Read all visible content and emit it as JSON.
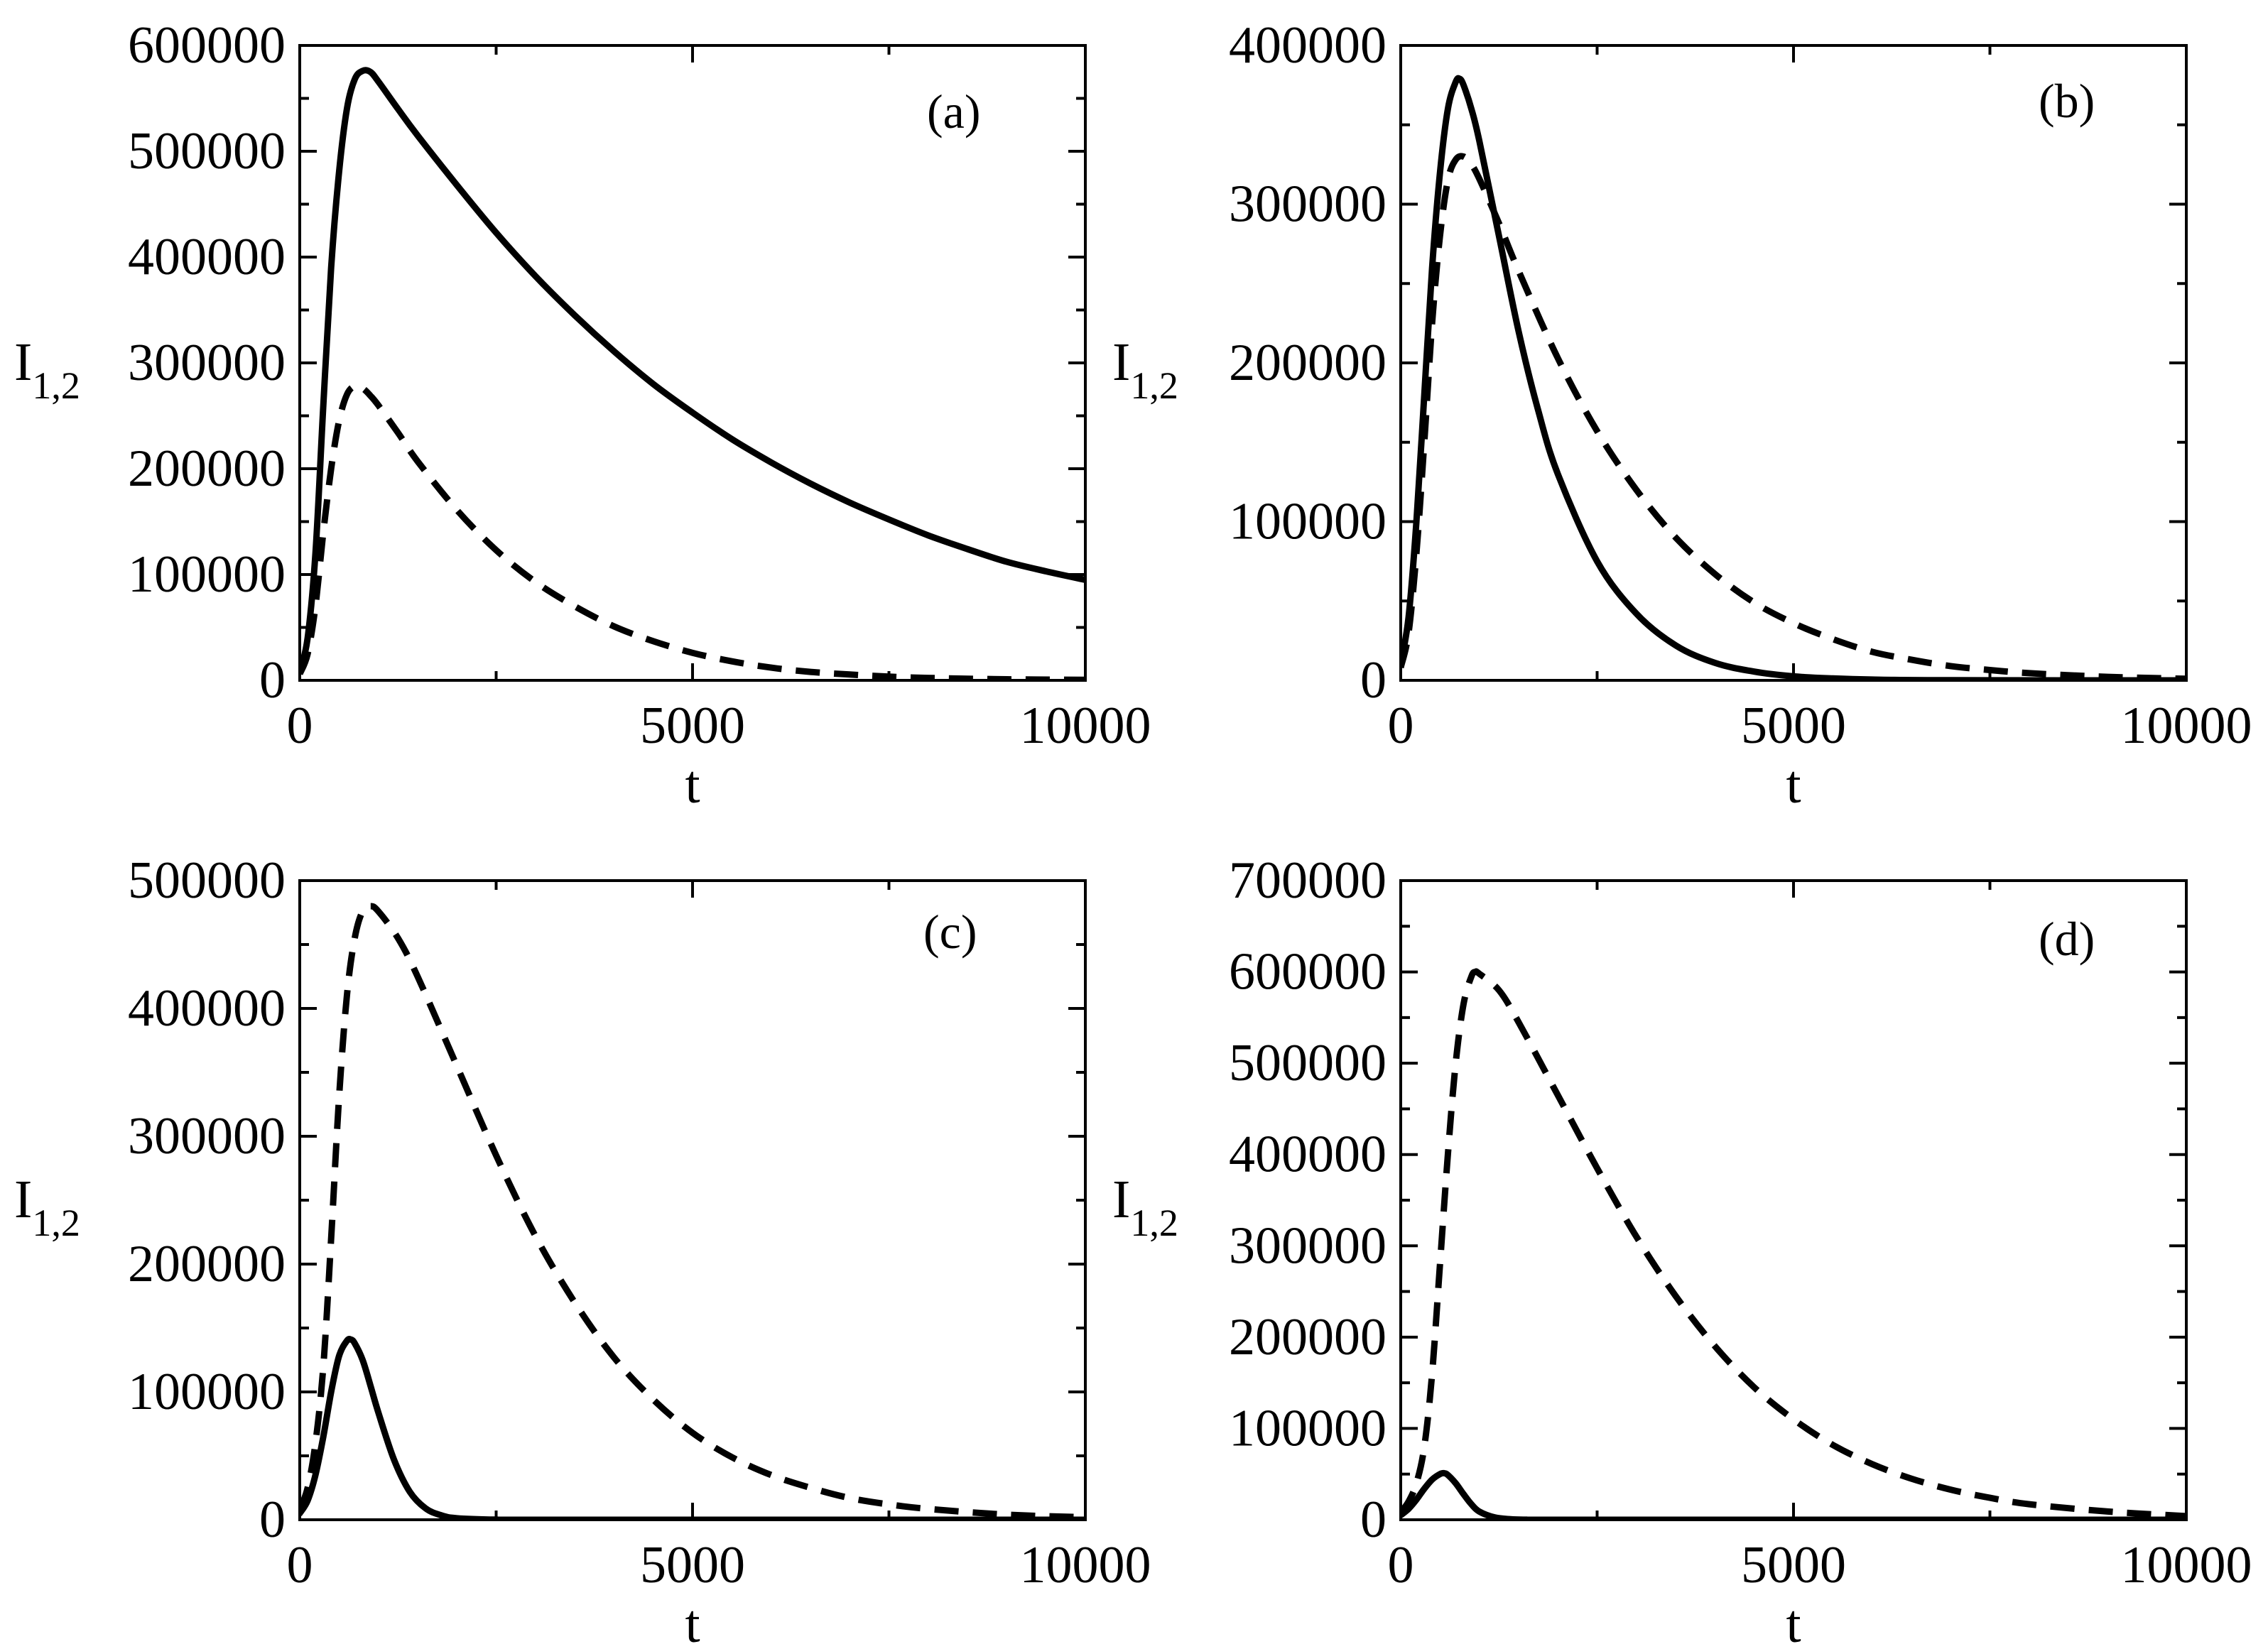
{
  "chart_data": [
    {
      "type": "line",
      "panel_label": "(a)",
      "xlabel": "t",
      "ylabel": "I",
      "ylabel_sub": "1,2",
      "xlim": [
        0,
        10000
      ],
      "ylim": [
        0,
        600000
      ],
      "xticks": [
        0,
        5000,
        10000
      ],
      "xtick_labels": [
        "0",
        "5000",
        "10000"
      ],
      "yticks": [
        0,
        100000,
        200000,
        300000,
        400000,
        500000,
        600000
      ],
      "ytick_labels": [
        "0",
        "100000",
        "200000",
        "300000",
        "400000",
        "500000",
        "600000"
      ],
      "series": [
        {
          "name": "I1",
          "style": "solid",
          "points": [
            [
              0,
              8000
            ],
            [
              100,
              40000
            ],
            [
              200,
              120000
            ],
            [
              300,
              260000
            ],
            [
              400,
              390000
            ],
            [
              500,
              480000
            ],
            [
              600,
              540000
            ],
            [
              700,
              568000
            ],
            [
              800,
              576000
            ],
            [
              900,
              575000
            ],
            [
              1000,
              566000
            ],
            [
              1250,
              540000
            ],
            [
              1500,
              515000
            ],
            [
              2000,
              468000
            ],
            [
              2500,
              423000
            ],
            [
              3000,
              382000
            ],
            [
              3500,
              345000
            ],
            [
              4000,
              311000
            ],
            [
              4500,
              280000
            ],
            [
              5000,
              253000
            ],
            [
              5500,
              228000
            ],
            [
              6000,
              206000
            ],
            [
              6500,
              186000
            ],
            [
              7000,
              168000
            ],
            [
              7500,
              152000
            ],
            [
              8000,
              137000
            ],
            [
              8500,
              124000
            ],
            [
              9000,
              112000
            ],
            [
              9500,
              103000
            ],
            [
              10000,
              95000
            ]
          ]
        },
        {
          "name": "I2",
          "style": "dashed",
          "points": [
            [
              0,
              6000
            ],
            [
              100,
              25000
            ],
            [
              200,
              70000
            ],
            [
              300,
              140000
            ],
            [
              400,
              200000
            ],
            [
              500,
              245000
            ],
            [
              600,
              270000
            ],
            [
              700,
              278000
            ],
            [
              800,
              276000
            ],
            [
              900,
              269000
            ],
            [
              1000,
              260000
            ],
            [
              1250,
              234000
            ],
            [
              1500,
              207000
            ],
            [
              2000,
              161000
            ],
            [
              2500,
              123000
            ],
            [
              3000,
              93000
            ],
            [
              3500,
              70000
            ],
            [
              4000,
              51000
            ],
            [
              4500,
              37000
            ],
            [
              5000,
              26000
            ],
            [
              5500,
              18000
            ],
            [
              6000,
              12000
            ],
            [
              6500,
              8000
            ],
            [
              7000,
              5500
            ],
            [
              7500,
              3500
            ],
            [
              8000,
              2300
            ],
            [
              9000,
              1000
            ],
            [
              10000,
              500
            ]
          ]
        }
      ]
    },
    {
      "type": "line",
      "panel_label": "(b)",
      "xlabel": "t",
      "ylabel": "I",
      "ylabel_sub": "1,2",
      "xlim": [
        0,
        10000
      ],
      "ylim": [
        0,
        400000
      ],
      "xticks": [
        0,
        5000,
        10000
      ],
      "xtick_labels": [
        "0",
        "5000",
        "10000"
      ],
      "yticks": [
        0,
        100000,
        200000,
        300000,
        400000
      ],
      "ytick_labels": [
        "0",
        "100000",
        "200000",
        "300000",
        "400000"
      ],
      "series": [
        {
          "name": "I1",
          "style": "solid",
          "points": [
            [
              0,
              10000
            ],
            [
              100,
              40000
            ],
            [
              200,
              100000
            ],
            [
              300,
              180000
            ],
            [
              400,
              260000
            ],
            [
              500,
              320000
            ],
            [
              600,
              360000
            ],
            [
              700,
              377000
            ],
            [
              750,
              379000
            ],
            [
              800,
              375000
            ],
            [
              900,
              360000
            ],
            [
              1000,
              340000
            ],
            [
              1250,
              280000
            ],
            [
              1500,
              220000
            ],
            [
              1750,
              170000
            ],
            [
              2000,
              130000
            ],
            [
              2500,
              75000
            ],
            [
              3000,
              42000
            ],
            [
              3500,
              22000
            ],
            [
              4000,
              11000
            ],
            [
              4500,
              5500
            ],
            [
              5000,
              2500
            ],
            [
              5500,
              1200
            ],
            [
              6000,
              500
            ],
            [
              7000,
              100
            ],
            [
              10000,
              0
            ]
          ]
        },
        {
          "name": "I2",
          "style": "dashed",
          "points": [
            [
              0,
              8000
            ],
            [
              100,
              30000
            ],
            [
              200,
              80000
            ],
            [
              300,
              150000
            ],
            [
              400,
              225000
            ],
            [
              500,
              280000
            ],
            [
              600,
              315000
            ],
            [
              700,
              328000
            ],
            [
              800,
              330000
            ],
            [
              900,
              325000
            ],
            [
              1000,
              316000
            ],
            [
              1250,
              288000
            ],
            [
              1500,
              258000
            ],
            [
              2000,
              203000
            ],
            [
              2500,
              157000
            ],
            [
              3000,
              120000
            ],
            [
              3500,
              90000
            ],
            [
              4000,
              67000
            ],
            [
              4500,
              49000
            ],
            [
              5000,
              36000
            ],
            [
              5500,
              26000
            ],
            [
              6000,
              18000
            ],
            [
              6500,
              13000
            ],
            [
              7000,
              9000
            ],
            [
              7500,
              6500
            ],
            [
              8000,
              4500
            ],
            [
              9000,
              2200
            ],
            [
              10000,
              1000
            ]
          ]
        }
      ]
    },
    {
      "type": "line",
      "panel_label": "(c)",
      "xlabel": "t",
      "ylabel": "I",
      "ylabel_sub": "1,2",
      "xlim": [
        0,
        10000
      ],
      "ylim": [
        0,
        500000
      ],
      "xticks": [
        0,
        5000,
        10000
      ],
      "xtick_labels": [
        "0",
        "5000",
        "10000"
      ],
      "yticks": [
        0,
        100000,
        200000,
        300000,
        400000,
        500000
      ],
      "ytick_labels": [
        "0",
        "100000",
        "200000",
        "300000",
        "400000",
        "500000"
      ],
      "series": [
        {
          "name": "I1",
          "style": "solid",
          "points": [
            [
              0,
              5000
            ],
            [
              100,
              15000
            ],
            [
              200,
              35000
            ],
            [
              300,
              65000
            ],
            [
              400,
              100000
            ],
            [
              500,
              128000
            ],
            [
              600,
              140000
            ],
            [
              650,
              141000
            ],
            [
              700,
              138000
            ],
            [
              800,
              125000
            ],
            [
              900,
              105000
            ],
            [
              1000,
              84000
            ],
            [
              1200,
              47000
            ],
            [
              1400,
              22000
            ],
            [
              1600,
              9000
            ],
            [
              1800,
              3500
            ],
            [
              2000,
              1200
            ],
            [
              2500,
              100
            ],
            [
              3000,
              0
            ],
            [
              10000,
              0
            ]
          ]
        },
        {
          "name": "I2",
          "style": "dashed",
          "points": [
            [
              0,
              8000
            ],
            [
              100,
              25000
            ],
            [
              200,
              60000
            ],
            [
              300,
              120000
            ],
            [
              400,
              220000
            ],
            [
              500,
              330000
            ],
            [
              600,
              410000
            ],
            [
              700,
              455000
            ],
            [
              800,
              476000
            ],
            [
              900,
              480000
            ],
            [
              1000,
              476000
            ],
            [
              1250,
              455000
            ],
            [
              1500,
              425000
            ],
            [
              2000,
              355000
            ],
            [
              2500,
              285000
            ],
            [
              3000,
              222000
            ],
            [
              3500,
              170000
            ],
            [
              4000,
              127000
            ],
            [
              4500,
              94000
            ],
            [
              5000,
              68000
            ],
            [
              5500,
              49000
            ],
            [
              6000,
              35000
            ],
            [
              6500,
              25000
            ],
            [
              7000,
              17000
            ],
            [
              7500,
              12000
            ],
            [
              8000,
              8500
            ],
            [
              9000,
              4000
            ],
            [
              10000,
              2000
            ]
          ]
        }
      ]
    },
    {
      "type": "line",
      "panel_label": "(d)",
      "xlabel": "t",
      "ylabel": "I",
      "ylabel_sub": "1,2",
      "xlim": [
        0,
        10000
      ],
      "ylim": [
        0,
        700000
      ],
      "xticks": [
        0,
        5000,
        10000
      ],
      "xtick_labels": [
        "0",
        "5000",
        "10000"
      ],
      "yticks": [
        0,
        100000,
        200000,
        300000,
        400000,
        500000,
        600000,
        700000
      ],
      "ytick_labels": [
        "0",
        "100000",
        "200000",
        "300000",
        "400000",
        "500000",
        "600000",
        "700000"
      ],
      "series": [
        {
          "name": "I1",
          "style": "solid",
          "points": [
            [
              0,
              5000
            ],
            [
              100,
              12000
            ],
            [
              200,
              22000
            ],
            [
              300,
              34000
            ],
            [
              400,
              44000
            ],
            [
              500,
              50000
            ],
            [
              550,
              51000
            ],
            [
              600,
              49000
            ],
            [
              700,
              40000
            ],
            [
              800,
              28000
            ],
            [
              900,
              17000
            ],
            [
              1000,
              9000
            ],
            [
              1200,
              2500
            ],
            [
              1400,
              600
            ],
            [
              1600,
              100
            ],
            [
              2000,
              0
            ],
            [
              10000,
              0
            ]
          ]
        },
        {
          "name": "I2",
          "style": "dashed",
          "points": [
            [
              0,
              8000
            ],
            [
              100,
              20000
            ],
            [
              200,
              40000
            ],
            [
              300,
              80000
            ],
            [
              400,
              160000
            ],
            [
              500,
              280000
            ],
            [
              600,
              400000
            ],
            [
              700,
              500000
            ],
            [
              800,
              565000
            ],
            [
              900,
              595000
            ],
            [
              950,
              600000
            ],
            [
              1000,
              598000
            ],
            [
              1250,
              580000
            ],
            [
              1500,
              545000
            ],
            [
              2000,
              465000
            ],
            [
              2500,
              385000
            ],
            [
              3000,
              310000
            ],
            [
              3500,
              245000
            ],
            [
              4000,
              190000
            ],
            [
              4500,
              145000
            ],
            [
              5000,
              110000
            ],
            [
              5500,
              82000
            ],
            [
              6000,
              61000
            ],
            [
              6500,
              45000
            ],
            [
              7000,
              33000
            ],
            [
              7500,
              24000
            ],
            [
              8000,
              17000
            ],
            [
              9000,
              9000
            ],
            [
              10000,
              4000
            ]
          ]
        }
      ]
    }
  ]
}
